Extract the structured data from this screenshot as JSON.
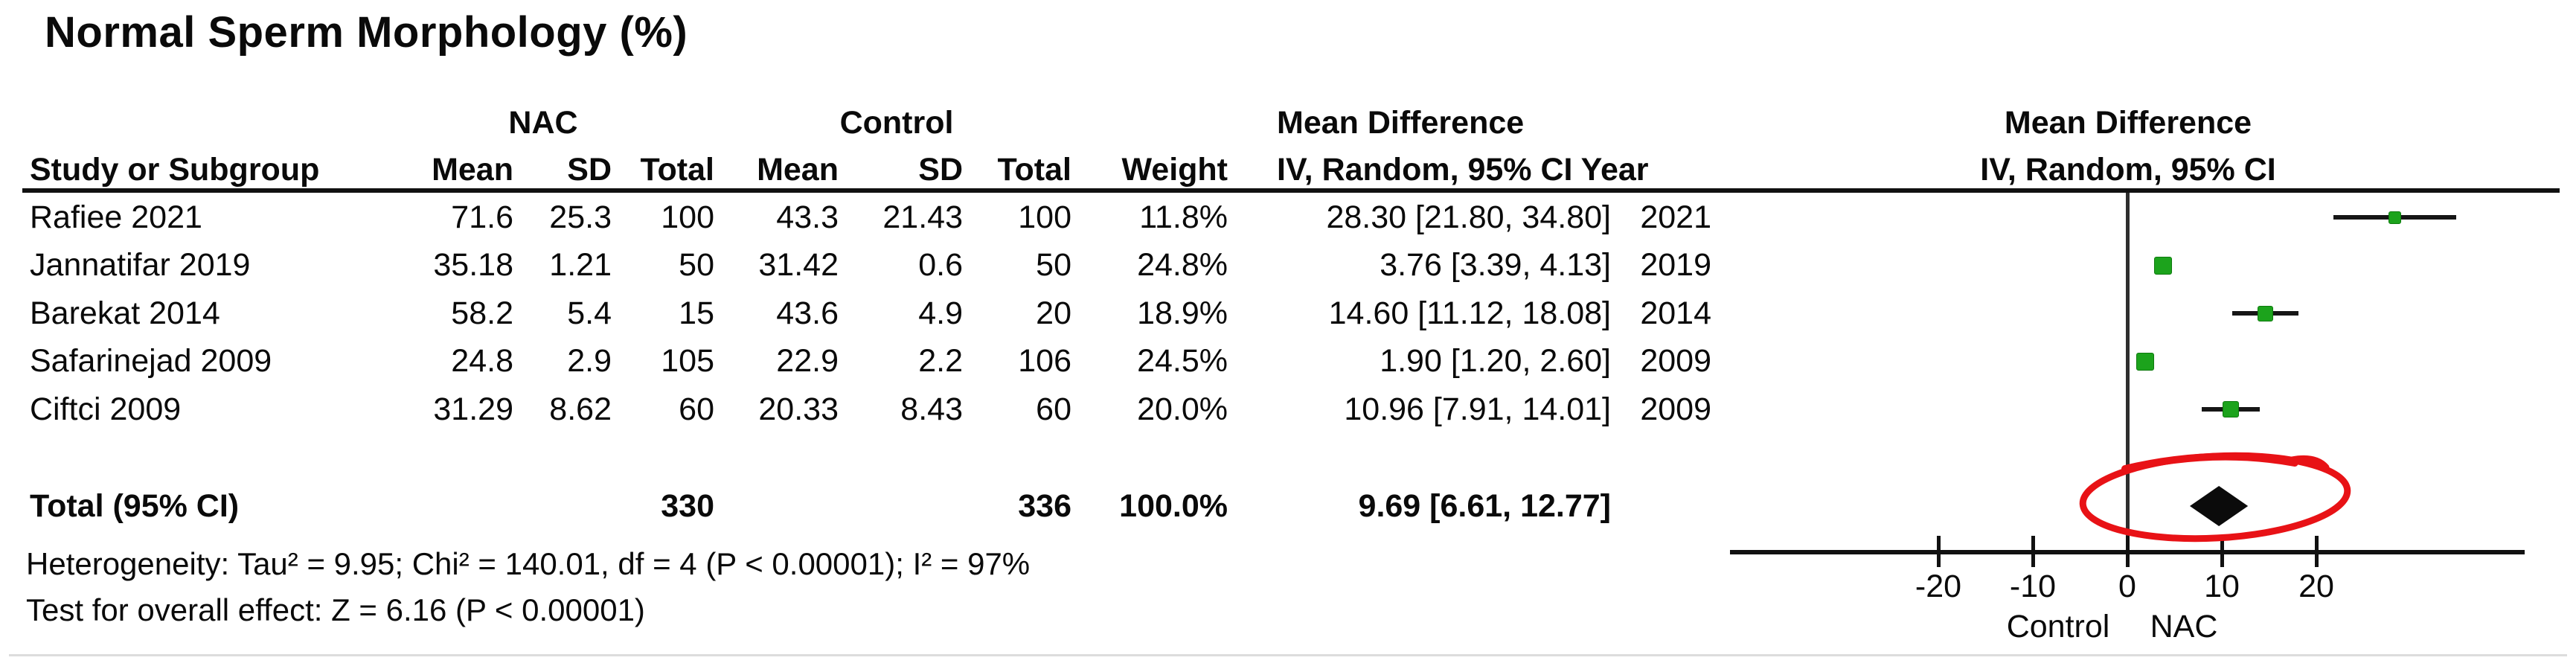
{
  "title": "Normal Sperm Morphology (%)",
  "table": {
    "group_headers": {
      "nac": "NAC",
      "control": "Control"
    },
    "col_headers": {
      "study": "Study or Subgroup",
      "mean": "Mean",
      "sd": "SD",
      "total": "Total",
      "mean2": "Mean",
      "sd2": "SD",
      "total2": "Total",
      "weight": "Weight",
      "md_line1": "Mean Difference",
      "md_line2": "IV, Random, 95% CI Year"
    },
    "plot_headers": {
      "line1": "Mean Difference",
      "line2": "IV, Random, 95% CI"
    },
    "rows": [
      {
        "study": "Rafiee 2021",
        "nac_mean": "71.6",
        "nac_sd": "25.3",
        "nac_total": "100",
        "c_mean": "43.3",
        "c_sd": "21.43",
        "c_total": "100",
        "weight": "11.8%",
        "md_ci": "28.30 [21.80, 34.80]",
        "year": "2021"
      },
      {
        "study": "Jannatifar 2019",
        "nac_mean": "35.18",
        "nac_sd": "1.21",
        "nac_total": "50",
        "c_mean": "31.42",
        "c_sd": "0.6",
        "c_total": "50",
        "weight": "24.8%",
        "md_ci": "3.76 [3.39, 4.13]",
        "year": "2019"
      },
      {
        "study": "Barekat 2014",
        "nac_mean": "58.2",
        "nac_sd": "5.4",
        "nac_total": "15",
        "c_mean": "43.6",
        "c_sd": "4.9",
        "c_total": "20",
        "weight": "18.9%",
        "md_ci": "14.60 [11.12, 18.08]",
        "year": "2014"
      },
      {
        "study": "Safarinejad 2009",
        "nac_mean": "24.8",
        "nac_sd": "2.9",
        "nac_total": "105",
        "c_mean": "22.9",
        "c_sd": "2.2",
        "c_total": "106",
        "weight": "24.5%",
        "md_ci": "1.90 [1.20, 2.60]",
        "year": "2009"
      },
      {
        "study": "Ciftci 2009",
        "nac_mean": "31.29",
        "nac_sd": "8.62",
        "nac_total": "60",
        "c_mean": "20.33",
        "c_sd": "8.43",
        "c_total": "60",
        "weight": "20.0%",
        "md_ci": "10.96 [7.91, 14.01]",
        "year": "2009"
      }
    ],
    "total_row": {
      "label": "Total (95% CI)",
      "nac_total": "330",
      "c_total": "336",
      "weight": "100.0%",
      "md_ci": "9.69 [6.61, 12.77]"
    },
    "heterogeneity": "Heterogeneity: Tau² = 9.95; Chi² = 140.01, df = 4 (P < 0.00001); I² = 97%",
    "overall_effect": "Test for overall effect: Z = 6.16 (P < 0.00001)"
  },
  "colors": {
    "marker_green": "#1ca31c",
    "annotation_red": "#e81216",
    "line_black": "#111111"
  },
  "chart_data": {
    "type": "forest_plot",
    "title": "Normal Sperm Morphology (%)",
    "effect_label": "Mean Difference",
    "method_label": "IV, Random, 95% CI",
    "x_axis": {
      "ticks": [
        -20,
        -10,
        0,
        10,
        20
      ],
      "range": [
        -42,
        42
      ],
      "left_label": "Control",
      "right_label": "NAC"
    },
    "studies": [
      {
        "name": "Rafiee 2021",
        "nac_mean": 71.6,
        "nac_sd": 25.3,
        "nac_total": 100,
        "control_mean": 43.3,
        "control_sd": 21.43,
        "control_total": 100,
        "weight_pct": 11.8,
        "md": 28.3,
        "ci_low": 21.8,
        "ci_high": 34.8,
        "year": 2021
      },
      {
        "name": "Jannatifar 2019",
        "nac_mean": 35.18,
        "nac_sd": 1.21,
        "nac_total": 50,
        "control_mean": 31.42,
        "control_sd": 0.6,
        "control_total": 50,
        "weight_pct": 24.8,
        "md": 3.76,
        "ci_low": 3.39,
        "ci_high": 4.13,
        "year": 2019
      },
      {
        "name": "Barekat 2014",
        "nac_mean": 58.2,
        "nac_sd": 5.4,
        "nac_total": 15,
        "control_mean": 43.6,
        "control_sd": 4.9,
        "control_total": 20,
        "weight_pct": 18.9,
        "md": 14.6,
        "ci_low": 11.12,
        "ci_high": 18.08,
        "year": 2014
      },
      {
        "name": "Safarinejad 2009",
        "nac_mean": 24.8,
        "nac_sd": 2.9,
        "nac_total": 105,
        "control_mean": 22.9,
        "control_sd": 2.2,
        "control_total": 106,
        "weight_pct": 24.5,
        "md": 1.9,
        "ci_low": 1.2,
        "ci_high": 2.6,
        "year": 2009
      },
      {
        "name": "Ciftci 2009",
        "nac_mean": 31.29,
        "nac_sd": 8.62,
        "nac_total": 60,
        "control_mean": 20.33,
        "control_sd": 8.43,
        "control_total": 60,
        "weight_pct": 20.0,
        "md": 10.96,
        "ci_low": 7.91,
        "ci_high": 14.01,
        "year": 2009
      }
    ],
    "total": {
      "label": "Total (95% CI)",
      "nac_total": 330,
      "control_total": 336,
      "weight_pct": 100.0,
      "md": 9.69,
      "ci_low": 6.61,
      "ci_high": 12.77
    },
    "heterogeneity": {
      "tau2": 9.95,
      "chi2": 140.01,
      "df": 4,
      "p": "< 0.00001",
      "i2_pct": 97
    },
    "overall_effect": {
      "z": 6.16,
      "p": "< 0.00001"
    }
  }
}
